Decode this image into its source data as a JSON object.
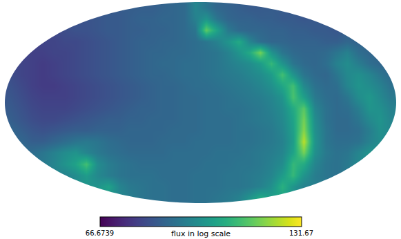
{
  "chart_data": {
    "type": "heatmap",
    "color": "Viridis",
    "tick_labels": false,
    "colorbar_label": "flux in log scale",
    "colorbar_range": [
      66.6739,
      131.67
    ],
    "colorbar_ticks": [
      66.6739,
      131.67
    ],
    "cells": [
      [
        null,
        null,
        null,
        null,
        null,
        null,
        null,
        null,
        null,
        null,
        null,
        null,
        86,
        86,
        87,
        88,
        89,
        96,
        92,
        88,
        87,
        86,
        85,
        85,
        null,
        null,
        null,
        null,
        null,
        null,
        null,
        null,
        null,
        null,
        null,
        null
      ],
      [
        null,
        null,
        null,
        null,
        null,
        null,
        null,
        null,
        84,
        85,
        85,
        86,
        87,
        87,
        88,
        88,
        89,
        95,
        100,
        92,
        88,
        87,
        87,
        86,
        86,
        85,
        85,
        84,
        null,
        null,
        null,
        null,
        null,
        null,
        null,
        null
      ],
      [
        null,
        null,
        null,
        null,
        null,
        82,
        83,
        83,
        84,
        85,
        85,
        86,
        86,
        87,
        87,
        88,
        89,
        92,
        116,
        104,
        93,
        89,
        88,
        88,
        87,
        87,
        86,
        86,
        85,
        85,
        84,
        null,
        null,
        null,
        null,
        null
      ],
      [
        null,
        null,
        null,
        80,
        80,
        81,
        81,
        82,
        83,
        84,
        85,
        86,
        87,
        87,
        88,
        88,
        89,
        90,
        92,
        95,
        100,
        106,
        96,
        90,
        88,
        88,
        87,
        87,
        87,
        86,
        86,
        88,
        87,
        null,
        null,
        null
      ],
      [
        null,
        null,
        79,
        79,
        80,
        80,
        81,
        82,
        83,
        84,
        85,
        86,
        87,
        88,
        88,
        89,
        89,
        90,
        91,
        92,
        95,
        100,
        106,
        118,
        100,
        92,
        89,
        88,
        88,
        89,
        92,
        95,
        90,
        88,
        null,
        null
      ],
      [
        null,
        80,
        79,
        78,
        79,
        80,
        81,
        82,
        83,
        84,
        85,
        86,
        87,
        88,
        89,
        89,
        90,
        90,
        91,
        92,
        94,
        96,
        98,
        102,
        110,
        100,
        92,
        89,
        88,
        90,
        95,
        98,
        94,
        90,
        88,
        null
      ],
      [
        82,
        80,
        79,
        78,
        79,
        80,
        81,
        82,
        83,
        84,
        85,
        86,
        87,
        88,
        88,
        89,
        90,
        90,
        91,
        92,
        93,
        94,
        96,
        98,
        102,
        112,
        100,
        92,
        89,
        88,
        92,
        97,
        99,
        96,
        92,
        89
      ],
      [
        83,
        81,
        79,
        78,
        78,
        79,
        80,
        81,
        82,
        83,
        84,
        85,
        86,
        87,
        88,
        88,
        89,
        90,
        90,
        91,
        92,
        93,
        94,
        96,
        99,
        105,
        112,
        97,
        91,
        89,
        90,
        96,
        100,
        98,
        95,
        91
      ],
      [
        84,
        82,
        80,
        79,
        79,
        79,
        80,
        81,
        82,
        83,
        84,
        85,
        86,
        87,
        88,
        88,
        89,
        89,
        90,
        90,
        91,
        92,
        93,
        94,
        96,
        100,
        113,
        103,
        93,
        90,
        89,
        92,
        98,
        101,
        97,
        93
      ],
      [
        85,
        83,
        81,
        80,
        80,
        80,
        81,
        82,
        83,
        84,
        85,
        86,
        87,
        87,
        88,
        88,
        89,
        89,
        90,
        90,
        91,
        91,
        92,
        93,
        95,
        98,
        106,
        115,
        96,
        91,
        89,
        90,
        94,
        100,
        99,
        95
      ],
      [
        86,
        84,
        82,
        81,
        81,
        82,
        83,
        84,
        85,
        86,
        86,
        87,
        87,
        88,
        88,
        88,
        89,
        89,
        90,
        90,
        90,
        91,
        92,
        93,
        94,
        97,
        104,
        118,
        98,
        91,
        89,
        89,
        92,
        97,
        100,
        96
      ],
      [
        88,
        86,
        84,
        83,
        84,
        85,
        86,
        86,
        87,
        87,
        87,
        88,
        88,
        88,
        88,
        89,
        89,
        89,
        90,
        90,
        90,
        91,
        91,
        92,
        93,
        96,
        103,
        120,
        99,
        92,
        89,
        89,
        90,
        94,
        99,
        97
      ],
      [
        null,
        88,
        86,
        86,
        88,
        90,
        92,
        93,
        92,
        90,
        89,
        88,
        88,
        88,
        89,
        89,
        89,
        90,
        90,
        90,
        90,
        91,
        91,
        92,
        93,
        95,
        102,
        125,
        100,
        92,
        90,
        90,
        91,
        95,
        98,
        null
      ],
      [
        null,
        null,
        90,
        92,
        95,
        98,
        100,
        96,
        93,
        91,
        90,
        89,
        89,
        89,
        89,
        90,
        90,
        90,
        90,
        91,
        91,
        91,
        92,
        93,
        94,
        96,
        104,
        118,
        99,
        93,
        91,
        92,
        96,
        100,
        null,
        null
      ],
      [
        null,
        null,
        null,
        93,
        96,
        100,
        104,
        112,
        98,
        94,
        92,
        91,
        90,
        90,
        90,
        90,
        90,
        90,
        91,
        91,
        91,
        92,
        92,
        93,
        95,
        98,
        110,
        106,
        96,
        92,
        91,
        93,
        97,
        null,
        null,
        null
      ],
      [
        null,
        null,
        null,
        null,
        null,
        95,
        98,
        102,
        97,
        94,
        92,
        91,
        91,
        91,
        90,
        90,
        90,
        91,
        91,
        91,
        92,
        92,
        93,
        94,
        96,
        102,
        110,
        100,
        94,
        92,
        91,
        null,
        null,
        null,
        null,
        null
      ],
      [
        null,
        null,
        null,
        null,
        null,
        null,
        null,
        null,
        100,
        104,
        96,
        93,
        92,
        91,
        91,
        90,
        90,
        91,
        91,
        91,
        92,
        92,
        93,
        95,
        99,
        108,
        100,
        95,
        null,
        null,
        null,
        null,
        null,
        null,
        null,
        null
      ],
      [
        null,
        null,
        null,
        null,
        null,
        null,
        null,
        null,
        null,
        null,
        null,
        null,
        92,
        91,
        91,
        90,
        90,
        91,
        91,
        92,
        93,
        95,
        100,
        106,
        null,
        null,
        null,
        null,
        null,
        null,
        null,
        null,
        null,
        null,
        null,
        null
      ]
    ]
  }
}
